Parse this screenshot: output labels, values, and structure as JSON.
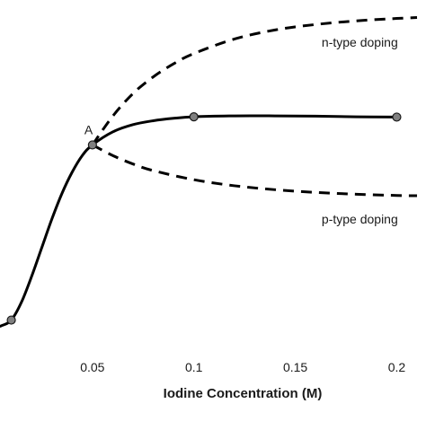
{
  "chart_data": {
    "type": "line",
    "title": "",
    "xlabel": "Iodine Concentration (M)",
    "ylabel": "",
    "xlim": [
      0,
      0.21
    ],
    "ylim": [
      0,
      1
    ],
    "x_ticks": [
      {
        "value": 0.05,
        "label": "0.05"
      },
      {
        "value": 0.1,
        "label": "0.1"
      },
      {
        "value": 0.15,
        "label": "0.15"
      },
      {
        "value": 0.2,
        "label": "0.2"
      }
    ],
    "grid": false,
    "legend": "none",
    "series": [
      {
        "style": "solid",
        "color": "#000000",
        "markers": true,
        "marker_color": "#808080",
        "curve": [
          {
            "x": -0.005,
            "y": 0.001
          },
          {
            "x": 0.0,
            "y": 0.003
          },
          {
            "x": 0.005,
            "y": 0.012
          },
          {
            "x": 0.01,
            "y": 0.031
          },
          {
            "x": 0.015,
            "y": 0.09
          },
          {
            "x": 0.02,
            "y": 0.175
          },
          {
            "x": 0.025,
            "y": 0.27
          },
          {
            "x": 0.03,
            "y": 0.365
          },
          {
            "x": 0.035,
            "y": 0.45
          },
          {
            "x": 0.04,
            "y": 0.52
          },
          {
            "x": 0.045,
            "y": 0.575
          },
          {
            "x": 0.05,
            "y": 0.61
          },
          {
            "x": 0.06,
            "y": 0.653
          },
          {
            "x": 0.07,
            "y": 0.677
          },
          {
            "x": 0.08,
            "y": 0.69
          },
          {
            "x": 0.09,
            "y": 0.698
          },
          {
            "x": 0.1,
            "y": 0.703
          },
          {
            "x": 0.12,
            "y": 0.706
          },
          {
            "x": 0.14,
            "y": 0.706
          },
          {
            "x": 0.16,
            "y": 0.705
          },
          {
            "x": 0.18,
            "y": 0.703
          },
          {
            "x": 0.2,
            "y": 0.702
          }
        ],
        "points": [
          {
            "x": 0.0,
            "y": 0.003
          },
          {
            "x": 0.01,
            "y": 0.031
          },
          {
            "x": 0.05,
            "y": 0.61
          },
          {
            "x": 0.1,
            "y": 0.703
          },
          {
            "x": 0.2,
            "y": 0.702
          }
        ]
      },
      {
        "name": "n-type doping",
        "style": "dashed",
        "color": "#000000",
        "markers": false,
        "curve": [
          {
            "x": 0.05,
            "y": 0.61
          },
          {
            "x": 0.06,
            "y": 0.705
          },
          {
            "x": 0.07,
            "y": 0.78
          },
          {
            "x": 0.08,
            "y": 0.835
          },
          {
            "x": 0.09,
            "y": 0.878
          },
          {
            "x": 0.1,
            "y": 0.912
          },
          {
            "x": 0.12,
            "y": 0.96
          },
          {
            "x": 0.14,
            "y": 0.99
          },
          {
            "x": 0.16,
            "y": 1.008
          },
          {
            "x": 0.18,
            "y": 1.02
          },
          {
            "x": 0.2,
            "y": 1.028
          },
          {
            "x": 0.21,
            "y": 1.031
          }
        ]
      },
      {
        "name": "p-type doping",
        "style": "dashed",
        "color": "#000000",
        "markers": false,
        "curve": [
          {
            "x": 0.05,
            "y": 0.61
          },
          {
            "x": 0.06,
            "y": 0.575
          },
          {
            "x": 0.07,
            "y": 0.547
          },
          {
            "x": 0.08,
            "y": 0.525
          },
          {
            "x": 0.1,
            "y": 0.495
          },
          {
            "x": 0.12,
            "y": 0.475
          },
          {
            "x": 0.14,
            "y": 0.462
          },
          {
            "x": 0.16,
            "y": 0.453
          },
          {
            "x": 0.18,
            "y": 0.447
          },
          {
            "x": 0.2,
            "y": 0.443
          },
          {
            "x": 0.21,
            "y": 0.442
          }
        ]
      }
    ],
    "annotations": [
      {
        "text": "A",
        "x": 0.05,
        "y": 0.61,
        "anchor": "above-left"
      },
      {
        "text": "n-type doping",
        "x": 0.163,
        "y": 0.935,
        "anchor": "start"
      },
      {
        "text": "p-type doping",
        "x": 0.163,
        "y": 0.35,
        "anchor": "start"
      }
    ]
  }
}
